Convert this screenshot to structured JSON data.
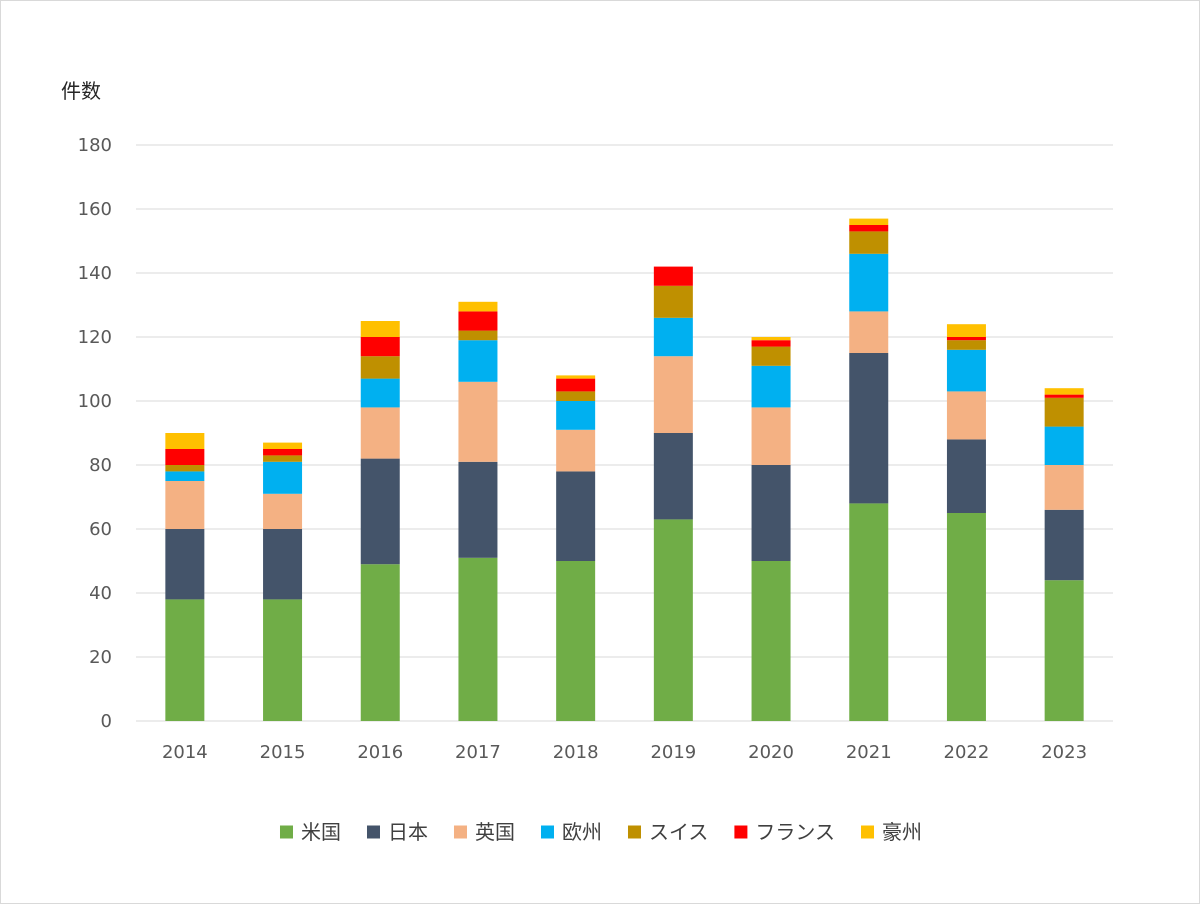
{
  "chart_data": {
    "type": "bar",
    "stacked": true,
    "title": "",
    "xlabel": "",
    "ylabel": "件数",
    "ylim": [
      0,
      180
    ],
    "yticks": [
      0,
      20,
      40,
      60,
      80,
      100,
      120,
      140,
      160,
      180
    ],
    "grid": true,
    "legend_position": "bottom",
    "categories": [
      "2014",
      "2015",
      "2016",
      "2017",
      "2018",
      "2019",
      "2020",
      "2021",
      "2022",
      "2023"
    ],
    "series": [
      {
        "name": "米国",
        "color": "#70AD47",
        "values": [
          38,
          38,
          49,
          51,
          50,
          63,
          50,
          68,
          65,
          44
        ]
      },
      {
        "name": "日本",
        "color": "#44546A",
        "values": [
          22,
          22,
          33,
          30,
          28,
          27,
          30,
          47,
          23,
          22
        ]
      },
      {
        "name": "英国",
        "color": "#F4B183",
        "values": [
          15,
          11,
          16,
          25,
          13,
          24,
          18,
          13,
          15,
          14
        ]
      },
      {
        "name": "欧州",
        "color": "#00B0F0",
        "values": [
          3,
          10,
          9,
          13,
          9,
          12,
          13,
          18,
          13,
          12
        ]
      },
      {
        "name": "スイス",
        "color": "#BF9000",
        "values": [
          2,
          2,
          7,
          3,
          3,
          10,
          6,
          7,
          3,
          9
        ]
      },
      {
        "name": "フランス",
        "color": "#FF0000",
        "values": [
          5,
          2,
          6,
          6,
          4,
          6,
          2,
          2,
          1,
          1
        ]
      },
      {
        "name": "豪州",
        "color": "#FFC000",
        "values": [
          5,
          2,
          5,
          3,
          1,
          0,
          1,
          2,
          4,
          2
        ]
      }
    ]
  }
}
